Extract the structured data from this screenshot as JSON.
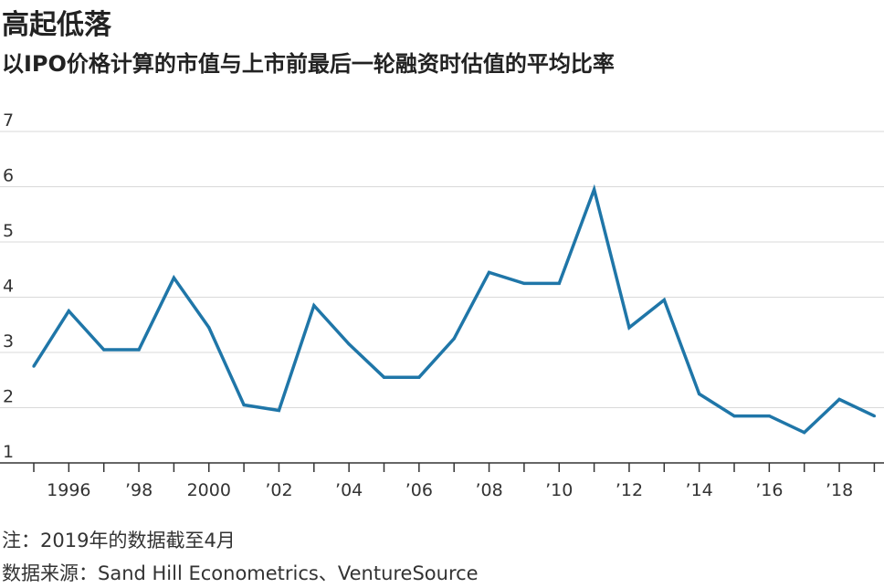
{
  "header": {
    "title": "高起低落",
    "subtitle": "以IPO价格计算的市值与上市前最后一轮融资时估值的平均比率"
  },
  "footer": {
    "note": "注：2019年的数据截至4月",
    "source": "数据来源：Sand Hill Econometrics、VentureSource"
  },
  "colors": {
    "line": "#1f76a8",
    "grid": "#d9d9d9",
    "axis": "#333333"
  },
  "chart_data": {
    "type": "line",
    "title": "高起低落",
    "subtitle": "以IPO价格计算的市值与上市前最后一轮融资时估值的平均比率",
    "ylim": [
      1,
      7
    ],
    "yticks": [
      1,
      2,
      3,
      4,
      5,
      6,
      7
    ],
    "xlim": [
      1995,
      2019.5
    ],
    "grid": true,
    "xtick_years": [
      1996,
      1998,
      2000,
      2002,
      2004,
      2006,
      2008,
      2010,
      2012,
      2014,
      2016,
      2018
    ],
    "xtick_labels": [
      "1996",
      "’98",
      "2000",
      "’02",
      "’04",
      "’06",
      "’08",
      "’10",
      "’12",
      "’14",
      "’16",
      "’18"
    ],
    "x": [
      1995,
      1996,
      1997,
      1998,
      1999,
      2000,
      2001,
      2002,
      2003,
      2004,
      2005,
      2006,
      2007,
      2008,
      2009,
      2010,
      2011,
      2012,
      2013,
      2014,
      2015,
      2016,
      2017,
      2018,
      2019
    ],
    "values": [
      2.75,
      3.75,
      3.05,
      3.05,
      4.35,
      3.45,
      2.05,
      1.95,
      3.85,
      3.15,
      2.55,
      2.55,
      3.25,
      4.45,
      4.25,
      4.25,
      5.95,
      3.45,
      3.95,
      2.25,
      1.85,
      1.85,
      1.55,
      2.15,
      1.85
    ]
  }
}
